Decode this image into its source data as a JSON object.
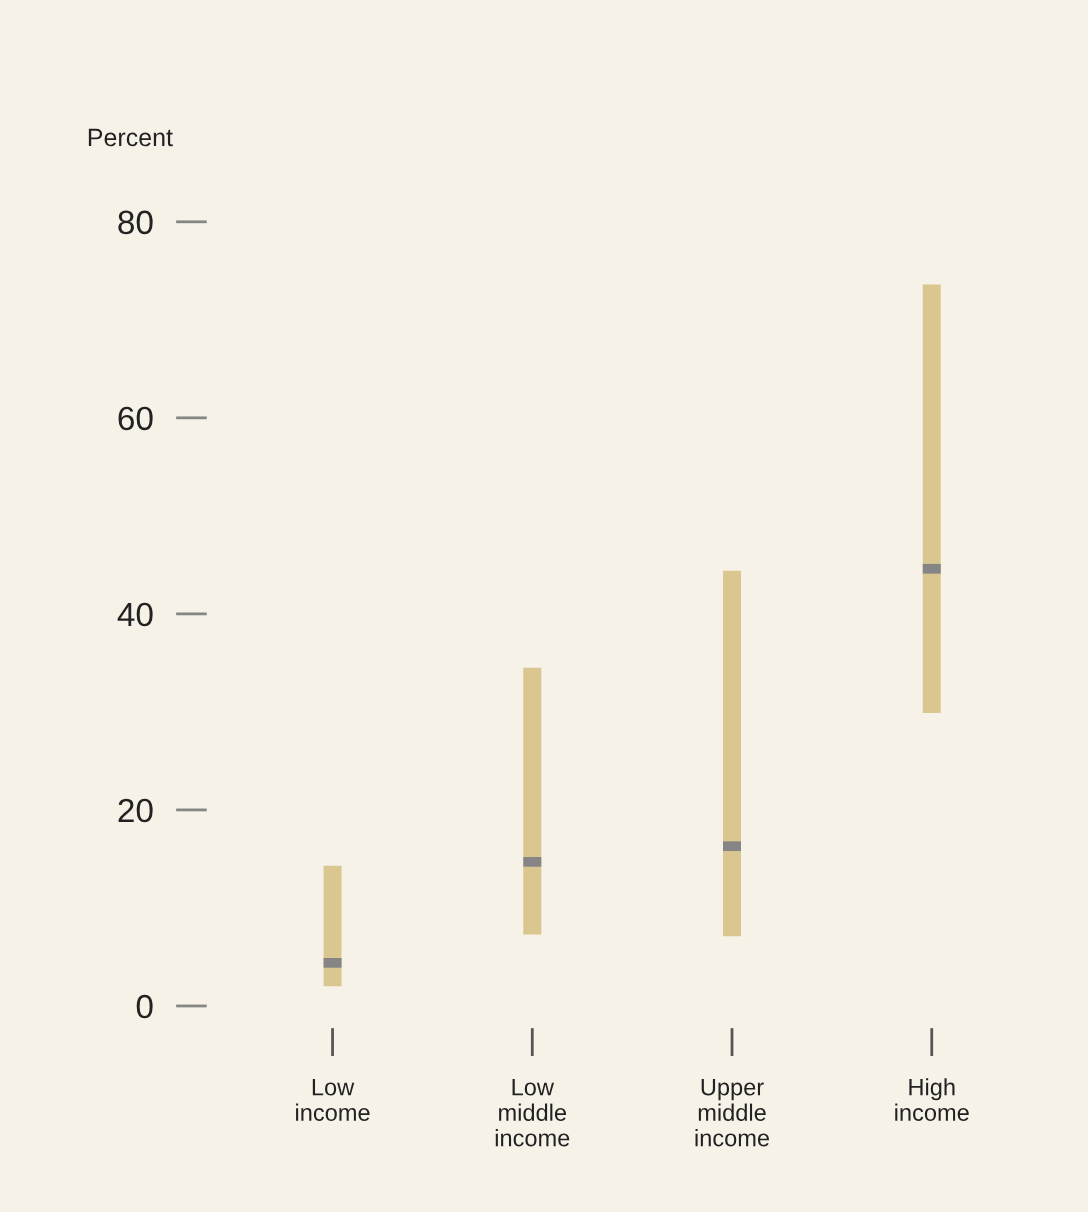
{
  "chart_data": {
    "type": "box",
    "ylabel": "Percent",
    "categories": [
      "Low\nincome",
      "Low\nmiddle\nincome",
      "Upper\nmiddle\nincome",
      "High\nincome"
    ],
    "series": [
      {
        "color": "#dac68f",
        "boxes": [
          {
            "low": 2.0,
            "q1": 2.0,
            "median": 4.4,
            "q3": 14.3,
            "high": 14.3
          },
          {
            "low": 7.3,
            "q1": 7.3,
            "median": 14.7,
            "q3": 34.5,
            "high": 34.5
          },
          {
            "low": 7.1,
            "q1": 7.1,
            "median": 16.3,
            "q3": 44.4,
            "high": 44.4
          },
          {
            "low": 29.9,
            "q1": 29.9,
            "median": 44.6,
            "q3": 73.6,
            "high": 73.6
          }
        ]
      }
    ],
    "ylim": [
      0,
      80
    ],
    "yticks": [
      0,
      20,
      40,
      60,
      80
    ],
    "grid": false,
    "legend": false
  }
}
